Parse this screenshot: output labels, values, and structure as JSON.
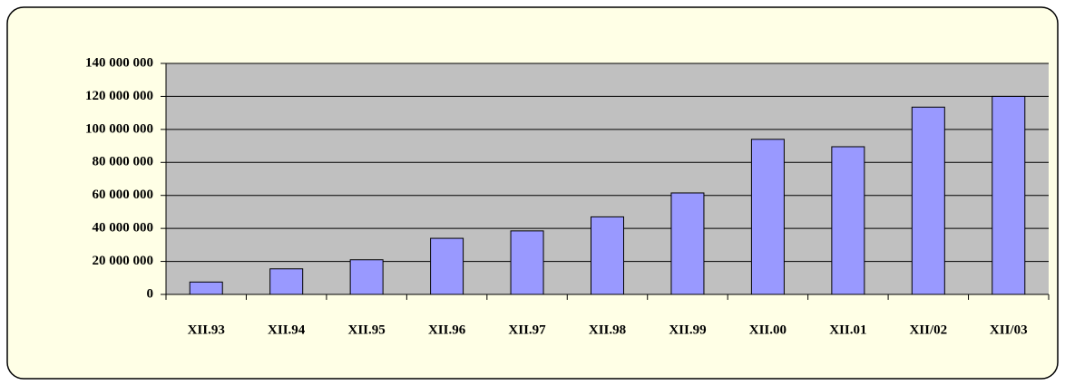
{
  "chart_data": {
    "type": "bar",
    "categories": [
      "XII.93",
      "XII.94",
      "XII.95",
      "XII.96",
      "XII.97",
      "XII.98",
      "XII.99",
      "XII.00",
      "XII.01",
      "XII/02",
      "XII/03"
    ],
    "values": [
      7500000,
      15500000,
      21000000,
      34000000,
      38500000,
      47000000,
      61500000,
      94000000,
      89500000,
      113500000,
      120000000
    ],
    "color": "#9999ff",
    "ylim": [
      0,
      140000000
    ],
    "yticks": [
      {
        "value": 0,
        "label": "0"
      },
      {
        "value": 20000000,
        "label": "20 000 000"
      },
      {
        "value": 40000000,
        "label": "40 000 000"
      },
      {
        "value": 60000000,
        "label": "60 000 000"
      },
      {
        "value": 80000000,
        "label": "80 000 000"
      },
      {
        "value": 100000000,
        "label": "100 000 000"
      },
      {
        "value": 120000000,
        "label": "120 000 000"
      },
      {
        "value": 140000000,
        "label": "140 000 000"
      }
    ],
    "grid": true
  }
}
